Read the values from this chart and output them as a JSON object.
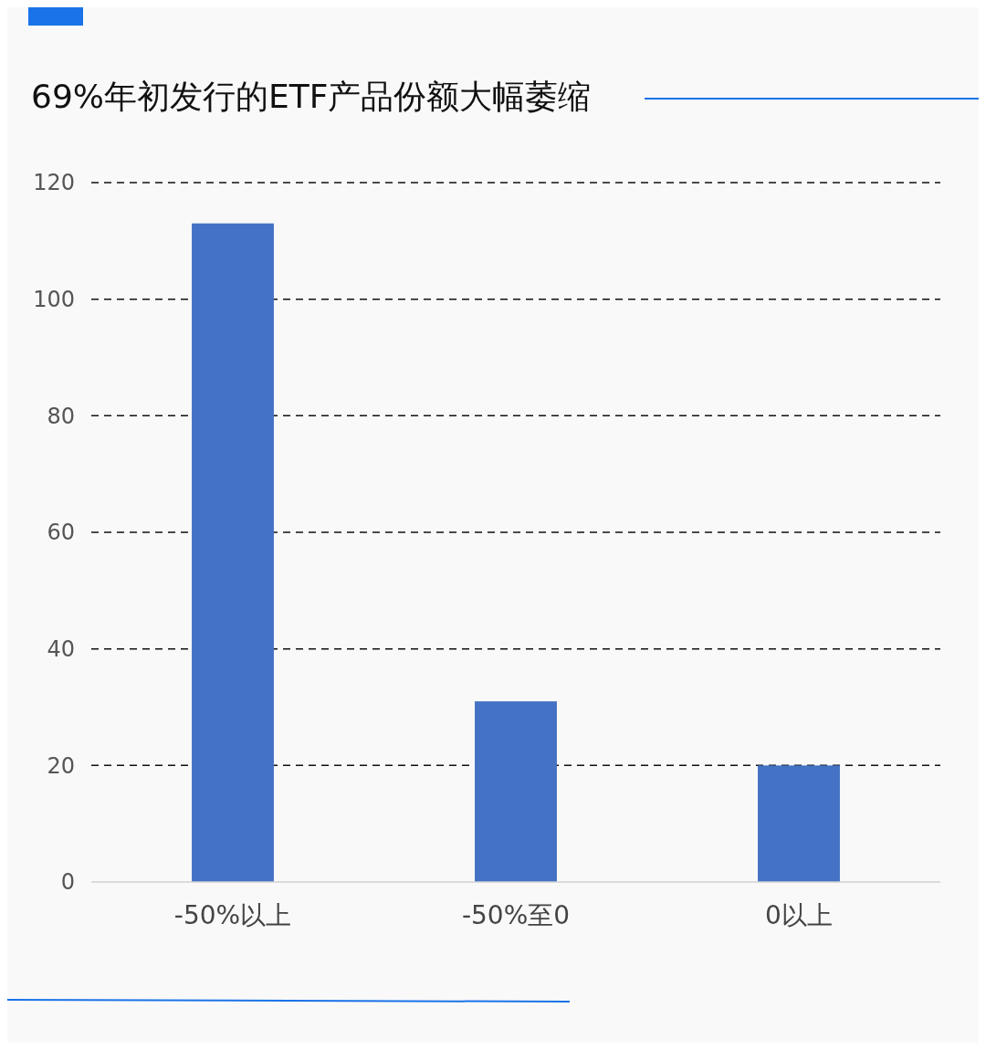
{
  "chart_data": {
    "type": "bar",
    "title": "69%年初发行的ETF产品份额大幅萎缩",
    "categories": [
      "-50%以上",
      "-50%至0",
      "0以上"
    ],
    "values": [
      113,
      31,
      20
    ],
    "color": "#4472c4",
    "ylim": [
      0,
      120
    ],
    "yticks": [
      0,
      20,
      40,
      60,
      80,
      100,
      120
    ],
    "grid": "y"
  }
}
